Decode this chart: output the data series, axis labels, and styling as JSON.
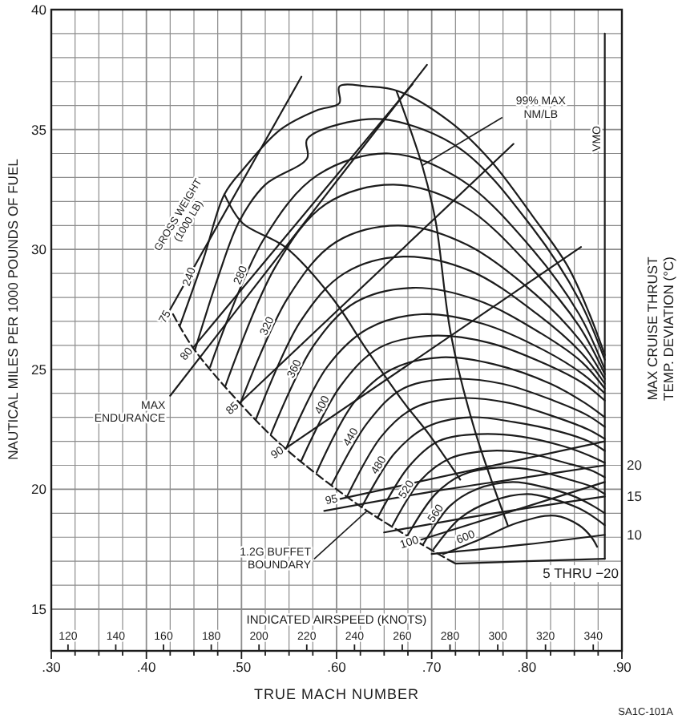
{
  "chart_data": {
    "type": "line",
    "xlabel": "TRUE MACH NUMBER",
    "ylabel": "NAUTICAL MILES PER 1000 POUNDS OF FUEL",
    "x2label": "INDICATED AIRSPEED (KNOTS)",
    "xlim": [
      0.3,
      0.9
    ],
    "xticks": [
      {
        "value": 0.3,
        "label": ".30"
      },
      {
        "value": 0.325,
        "label": null
      },
      {
        "value": 0.35,
        "label": null
      },
      {
        "value": 0.375,
        "label": null
      },
      {
        "value": 0.4,
        "label": ".40"
      },
      {
        "value": 0.425,
        "label": null
      },
      {
        "value": 0.45,
        "label": null
      },
      {
        "value": 0.475,
        "label": null
      },
      {
        "value": 0.5,
        "label": ".50"
      },
      {
        "value": 0.525,
        "label": null
      },
      {
        "value": 0.55,
        "label": null
      },
      {
        "value": 0.575,
        "label": null
      },
      {
        "value": 0.6,
        "label": ".60"
      },
      {
        "value": 0.625,
        "label": null
      },
      {
        "value": 0.65,
        "label": null
      },
      {
        "value": 0.675,
        "label": null
      },
      {
        "value": 0.7,
        "label": ".70"
      },
      {
        "value": 0.725,
        "label": null
      },
      {
        "value": 0.75,
        "label": null
      },
      {
        "value": 0.775,
        "label": null
      },
      {
        "value": 0.8,
        "label": ".80"
      },
      {
        "value": 0.825,
        "label": null
      },
      {
        "value": 0.85,
        "label": null
      },
      {
        "value": 0.875,
        "label": null
      },
      {
        "value": 0.9,
        "label": ".90"
      }
    ],
    "ylim": [
      15,
      40
    ],
    "yticks": [
      15,
      {
        "value": 16,
        "label": null
      },
      {
        "value": 17,
        "label": null
      },
      {
        "value": 18,
        "label": null
      },
      {
        "value": 19,
        "label": null
      },
      20,
      {
        "value": 21,
        "label": null
      },
      {
        "value": 22,
        "label": null
      },
      {
        "value": 23,
        "label": null
      },
      {
        "value": 24,
        "label": null
      },
      25,
      {
        "value": 26,
        "label": null
      },
      {
        "value": 27,
        "label": null
      },
      {
        "value": 28,
        "label": null
      },
      {
        "value": 29,
        "label": null
      },
      30,
      {
        "value": 31,
        "label": null
      },
      {
        "value": 32,
        "label": null
      },
      {
        "value": 33,
        "label": null
      },
      {
        "value": 34,
        "label": null
      },
      35,
      {
        "value": 36,
        "label": null
      },
      {
        "value": 37,
        "label": null
      },
      {
        "value": 38,
        "label": null
      },
      {
        "value": 39,
        "label": null
      },
      40
    ],
    "x2lim": [
      113,
      352
    ],
    "x2ticks": [
      120,
      140,
      160,
      180,
      200,
      220,
      240,
      260,
      280,
      300,
      320,
      340
    ],
    "grid": true,
    "series": [
      {
        "name": "240",
        "color": "#1c1c1c",
        "x": [
          0.435,
          0.46,
          0.482,
          0.503,
          0.541,
          0.579,
          0.603,
          0.603,
          0.632,
          0.665,
          0.72,
          0.762,
          0.806,
          0.843,
          0.866,
          0.882
        ],
        "values": [
          26.8,
          29.6,
          32.3,
          33.4,
          35.0,
          35.8,
          36.1,
          36.8,
          36.8,
          36.6,
          35.3,
          33.7,
          31.4,
          29.3,
          27.3,
          25.6
        ]
      },
      {
        "color": "#1c1c1c",
        "x": [
          0.451,
          0.475,
          0.498,
          0.525,
          0.569,
          0.569,
          0.611,
          0.655,
          0.73,
          0.806,
          0.855,
          0.882
        ],
        "values": [
          25.8,
          28.8,
          31.2,
          32.7,
          33.8,
          34.6,
          35.3,
          35.4,
          34.2,
          30.9,
          27.9,
          25.4
        ]
      },
      {
        "name": "280",
        "color": "#1c1c1c",
        "x": [
          0.467,
          0.523,
          0.58,
          0.655,
          0.731,
          0.806,
          0.855,
          0.882
        ],
        "values": [
          25.1,
          30.4,
          33.1,
          34.0,
          32.9,
          30.0,
          27.3,
          25.0
        ]
      },
      {
        "color": "#1c1c1c",
        "x": [
          0.483,
          0.536,
          0.589,
          0.66,
          0.734,
          0.808,
          0.855,
          0.882
        ],
        "values": [
          24.3,
          29.3,
          31.9,
          32.7,
          31.8,
          29.1,
          26.8,
          24.8
        ]
      },
      {
        "name": "320",
        "color": "#1c1c1c",
        "x": [
          0.499,
          0.549,
          0.599,
          0.665,
          0.737,
          0.81,
          0.856,
          0.882
        ],
        "values": [
          23.6,
          28.0,
          30.3,
          31.0,
          30.2,
          28.1,
          26.2,
          24.6
        ]
      },
      {
        "color": "#1c1c1c",
        "x": [
          0.515,
          0.562,
          0.608,
          0.67,
          0.741,
          0.811,
          0.857,
          0.882
        ],
        "values": [
          22.9,
          27.0,
          29.0,
          29.7,
          29.1,
          27.3,
          25.7,
          24.4
        ]
      },
      {
        "name": "360",
        "color": "#1c1c1c",
        "x": [
          0.531,
          0.576,
          0.62,
          0.68,
          0.747,
          0.815,
          0.858,
          0.882
        ],
        "values": [
          22.3,
          26.0,
          27.8,
          28.4,
          27.9,
          26.5,
          25.3,
          24.2
        ]
      },
      {
        "color": "#1c1c1c",
        "x": [
          0.547,
          0.59,
          0.633,
          0.69,
          0.754,
          0.818,
          0.859,
          0.882
        ],
        "values": [
          21.7,
          25.1,
          26.7,
          27.3,
          26.9,
          25.8,
          24.8,
          24.0
        ]
      },
      {
        "name": "400",
        "color": "#1c1c1c",
        "x": [
          0.563,
          0.604,
          0.645,
          0.7,
          0.761,
          0.821,
          0.86,
          0.882
        ],
        "values": [
          21.2,
          24.3,
          25.9,
          26.4,
          26.1,
          25.2,
          24.4,
          23.7
        ]
      },
      {
        "color": "#1c1c1c",
        "x": [
          0.579,
          0.618,
          0.658,
          0.71,
          0.767,
          0.825,
          0.861,
          0.882
        ],
        "values": [
          20.7,
          23.6,
          25.0,
          25.5,
          25.2,
          24.4,
          23.6,
          23.0
        ]
      },
      {
        "name": "440",
        "color": "#1c1c1c",
        "x": [
          0.595,
          0.633,
          0.67,
          0.72,
          0.774,
          0.828,
          0.863,
          0.882
        ],
        "values": [
          20.2,
          22.8,
          24.2,
          24.6,
          24.4,
          23.7,
          23.1,
          22.6
        ]
      },
      {
        "color": "#1c1c1c",
        "x": [
          0.611,
          0.647,
          0.682,
          0.73,
          0.781,
          0.831,
          0.864,
          0.882
        ],
        "values": [
          19.7,
          22.2,
          23.4,
          23.8,
          23.6,
          23.0,
          22.5,
          22.1
        ]
      },
      {
        "name": "480",
        "color": "#1c1c1c",
        "x": [
          0.627,
          0.661,
          0.695,
          0.74,
          0.787,
          0.835,
          0.865,
          0.882
        ],
        "values": [
          19.3,
          21.5,
          22.6,
          23.0,
          22.8,
          22.4,
          22.0,
          21.6
        ]
      },
      {
        "color": "#1c1c1c",
        "x": [
          0.643,
          0.675,
          0.707,
          0.75,
          0.794,
          0.838,
          0.866,
          0.882
        ],
        "values": [
          18.8,
          20.9,
          22.0,
          22.3,
          22.2,
          21.8,
          21.4,
          21.1
        ]
      },
      {
        "name": "520",
        "color": "#1c1c1c",
        "x": [
          0.659,
          0.689,
          0.72,
          0.76,
          0.801,
          0.841,
          0.867,
          0.882
        ],
        "values": [
          18.5,
          20.4,
          21.3,
          21.6,
          21.5,
          21.1,
          20.8,
          20.5
        ]
      },
      {
        "color": "#1c1c1c",
        "x": [
          0.675,
          0.704,
          0.732,
          0.77,
          0.807,
          0.845,
          0.869,
          0.882
        ],
        "values": [
          18.1,
          19.8,
          20.6,
          20.9,
          20.8,
          20.4,
          20.1,
          19.8
        ]
      },
      {
        "name": "560",
        "color": "#1c1c1c",
        "x": [
          0.691,
          0.719,
          0.747,
          0.785,
          0.817,
          0.85,
          0.87,
          0.882
        ],
        "values": [
          17.7,
          19.3,
          20.0,
          20.3,
          20.1,
          19.7,
          19.3,
          19.0
        ]
      },
      {
        "color": "#1c1c1c",
        "x": [
          0.702,
          0.73,
          0.763,
          0.8,
          0.827,
          0.855,
          0.872,
          0.882
        ],
        "values": [
          17.5,
          18.8,
          19.5,
          19.8,
          19.6,
          19.2,
          18.8,
          18.5
        ]
      },
      {
        "name": "600",
        "color": "#1c1c1c",
        "x": [
          0.712,
          0.75,
          0.79,
          0.83,
          0.855,
          0.868,
          0.874
        ],
        "values": [
          17.3,
          17.9,
          18.6,
          18.9,
          18.5,
          18.0,
          17.6
        ]
      },
      {
        "name": "75",
        "color": "#1c1c1c",
        "x": [
          0.425,
          0.563
        ],
        "values": [
          27.5,
          37.2
        ]
      },
      {
        "name": "80",
        "color": "#1c1c1c",
        "x": [
          0.449,
          0.68
        ],
        "values": [
          25.9,
          36.9
        ]
      },
      {
        "name": "85",
        "color": "#1c1c1c",
        "x": [
          0.498,
          0.786
        ],
        "values": [
          23.6,
          34.4
        ]
      },
      {
        "name": "90",
        "color": "#1c1c1c",
        "x": [
          0.546,
          0.857
        ],
        "values": [
          21.7,
          30.1
        ]
      },
      {
        "name": "95",
        "color": "#1c1c1c",
        "x": [
          0.604,
          0.882
        ],
        "values": [
          19.6,
          22.0
        ]
      },
      {
        "name": "100",
        "color": "#1c1c1c",
        "x": [
          0.689,
          0.882
        ],
        "values": [
          17.9,
          20.3
        ]
      },
      {
        "name": "20",
        "color": "#1c1c1c",
        "x": [
          0.587,
          0.7,
          0.8,
          0.882
        ],
        "values": [
          19.1,
          19.9,
          20.5,
          21.0
        ]
      },
      {
        "name": "15",
        "color": "#1c1c1c",
        "x": [
          0.65,
          0.75,
          0.882
        ],
        "values": [
          18.2,
          18.9,
          19.7
        ]
      },
      {
        "name": "10",
        "color": "#1c1c1c",
        "x": [
          0.7,
          0.8,
          0.882
        ],
        "values": [
          17.3,
          17.7,
          18.1
        ]
      },
      {
        "name": "5 THRU −20",
        "color": "#1c1c1c",
        "x": [
          0.725,
          0.8,
          0.882
        ],
        "values": [
          16.9,
          17.0,
          17.1
        ]
      },
      {
        "name": "VMO",
        "color": "#1c1c1c",
        "x": [
          0.882,
          0.882
        ],
        "values": [
          39.0,
          17.1
        ]
      },
      {
        "color": "#1c1c1c",
        "line_style": "dashed",
        "x": [
          0.428,
          0.449,
          0.498,
          0.546,
          0.632,
          0.725
        ],
        "values": [
          27.3,
          25.9,
          23.6,
          21.7,
          19.1,
          16.9
        ]
      },
      {
        "color": "#1c1c1c",
        "x": [
          0.663,
          0.69,
          0.704,
          0.72,
          0.745,
          0.78
        ],
        "values": [
          36.6,
          33.5,
          31.2,
          26.5,
          22.5,
          18.5
        ]
      },
      {
        "color": "#1c1c1c",
        "x": [
          0.482,
          0.501,
          0.546,
          0.595,
          0.632,
          0.671,
          0.697,
          0.73
        ],
        "values": [
          32.3,
          31.1,
          30.1,
          28.0,
          25.8,
          23.6,
          22.3,
          20.4
        ]
      },
      {
        "color": "#1c1c1c",
        "x": [
          0.425,
          0.695
        ],
        "values": [
          23.9,
          37.7
        ]
      }
    ],
    "annotations": [
      {
        "text": "99% MAX\nNM/LB",
        "x": 0.69,
        "y": 33.5
      },
      {
        "text": "MAX\nENDURANCE",
        "x": 0.425,
        "y": 23.9
      },
      {
        "text": "1.2G BUFFET\nBOUNDARY",
        "x": 0.632,
        "y": 19.1
      },
      "GROSS WEIGHT\n(1000 LB)",
      "MAX CRUISE THRUST\nTEMP. DEVIATION (°C)",
      "SA1C-101A"
    ]
  }
}
